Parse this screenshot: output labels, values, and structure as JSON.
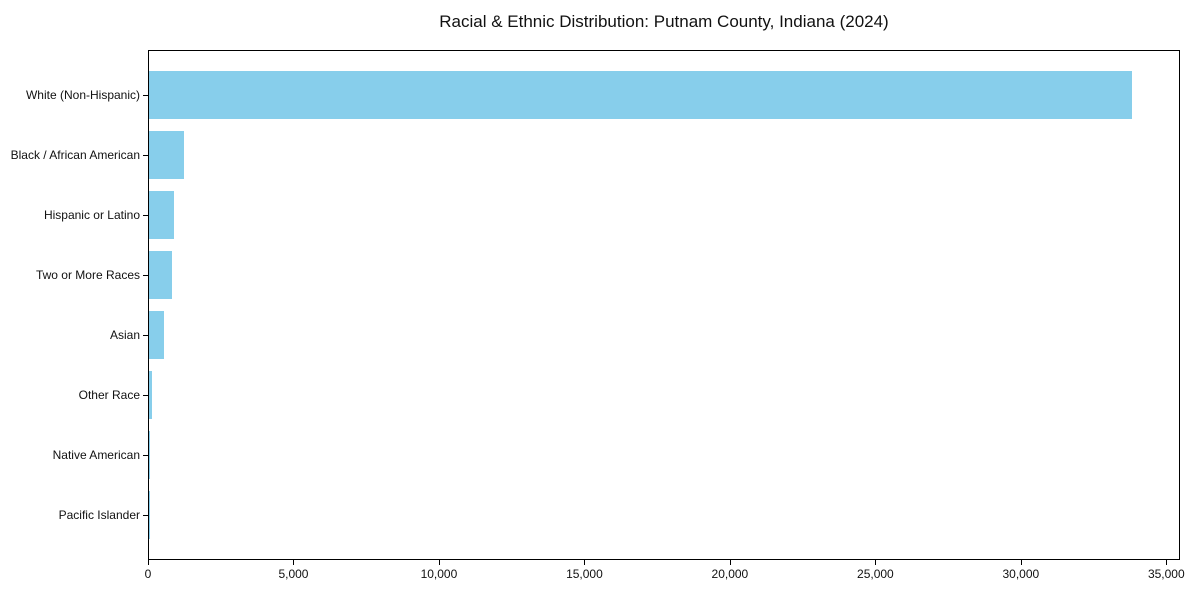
{
  "chart_data": {
    "type": "bar",
    "orientation": "horizontal",
    "title": "Racial & Ethnic Distribution: Putnam County, Indiana (2024)",
    "categories": [
      "White (Non-Hispanic)",
      "Black / African American",
      "Hispanic or Latino",
      "Two or More Races",
      "Asian",
      "Other Race",
      "Native American",
      "Pacific Islander"
    ],
    "values": [
      33800,
      1200,
      860,
      800,
      500,
      95,
      40,
      15
    ],
    "bar_color": "#87CEEB",
    "xlabel": "",
    "ylabel": "",
    "xlim": [
      0,
      35470
    ],
    "x_ticks": {
      "values": [
        0,
        5000,
        10000,
        15000,
        20000,
        25000,
        30000,
        35000
      ],
      "labels": [
        "0",
        "5,000",
        "10,000",
        "15,000",
        "20,000",
        "25,000",
        "30,000",
        "35,000"
      ]
    },
    "grid": false,
    "legend": null
  }
}
